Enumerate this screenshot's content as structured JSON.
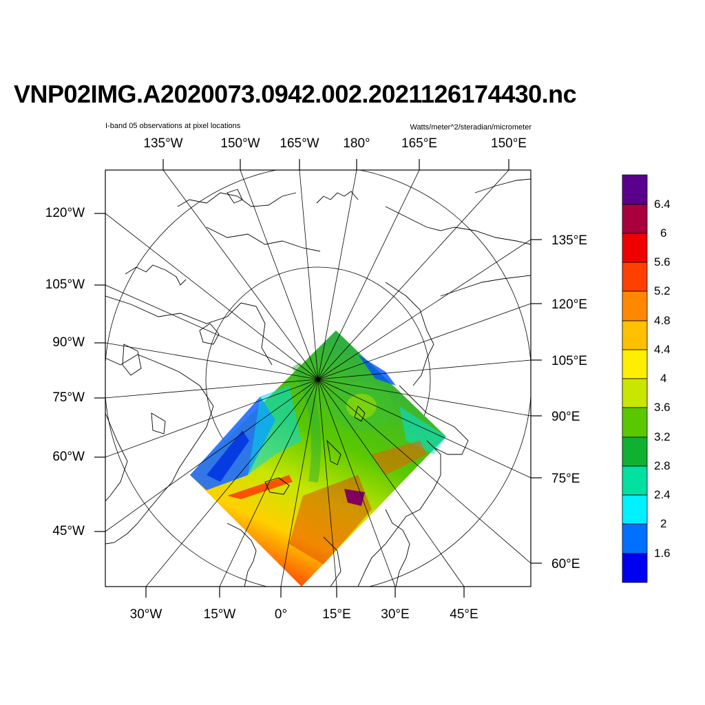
{
  "title": "VNP02IMG.A2020073.0942.002.2021126174430.nc",
  "subtitle_left": "I-band 05 observations at pixel locations",
  "subtitle_right": "Watts/meter^2/steradian/micrometer",
  "map": {
    "projection": "polar stereographic (north)",
    "top_labels": [
      "135°W",
      "150°W",
      "165°W",
      "180°",
      "165°E",
      "150°E"
    ],
    "left_labels": [
      "120°W",
      "105°W",
      "90°W",
      "75°W",
      "60°W",
      "45°W"
    ],
    "right_labels": [
      "135°E",
      "120°E",
      "105°E",
      "90°E",
      "75°E",
      "60°E"
    ],
    "bottom_labels": [
      "30°W",
      "15°W",
      "0°",
      "15°E",
      "30°E",
      "45°E"
    ]
  },
  "colorbar": {
    "labels": [
      "6.4",
      "6",
      "5.6",
      "5.2",
      "4.8",
      "4.4",
      "4",
      "3.6",
      "3.2",
      "2.8",
      "2.4",
      "2",
      "1.6"
    ],
    "colors": [
      "#5a008c",
      "#a8003c",
      "#ee0000",
      "#ff4000",
      "#ff8800",
      "#ffc000",
      "#ffee00",
      "#c8e600",
      "#5ac800",
      "#10b030",
      "#00e0a0",
      "#00f0ff",
      "#0070ff",
      "#0000f0"
    ]
  }
}
